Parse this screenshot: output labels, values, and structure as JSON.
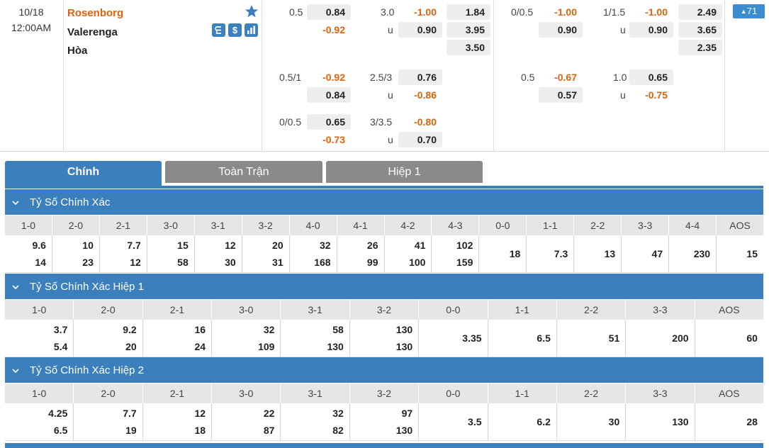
{
  "match": {
    "date": "10/18",
    "time": "12:00AM",
    "home": "Rosenborg",
    "away": "Valerenga",
    "draw": "Hòa",
    "more_count": "71"
  },
  "odds": {
    "ah_ft": [
      {
        "line": "0.5",
        "home": "0.84",
        "away": "-0.92"
      },
      {
        "line": "0.5/1",
        "home": "-0.92",
        "away": "0.84"
      },
      {
        "line": "0/0.5",
        "home": "0.65",
        "away": "-0.73"
      }
    ],
    "ou_ft": [
      {
        "line": "3.0",
        "over": "-1.00",
        "u": "u",
        "under": "0.90"
      },
      {
        "line": "2.5/3",
        "over": "0.76",
        "u": "u",
        "under": "-0.86"
      },
      {
        "line": "3/3.5",
        "over": "-0.80",
        "u": "u",
        "under": "0.70"
      }
    ],
    "x12_ft": [
      "1.84",
      "3.95",
      "3.50"
    ],
    "ah_h1": [
      {
        "line": "0/0.5",
        "home": "-1.00",
        "away": "0.90"
      },
      {
        "line": "0.5",
        "home": "-0.67",
        "away": "0.57"
      }
    ],
    "ou_h1": [
      {
        "line": "1/1.5",
        "over": "-1.00",
        "u": "u",
        "under": "0.90"
      },
      {
        "line": "1.0",
        "over": "0.65",
        "u": "u",
        "under": "-0.75"
      }
    ],
    "x12_h1": [
      "2.49",
      "3.65",
      "2.35"
    ]
  },
  "tabs": [
    "Chính",
    "Toàn Trận",
    "Hiệp 1"
  ],
  "sections": [
    {
      "title": "Tỷ Số Chính Xác",
      "headers": [
        "1-0",
        "2-0",
        "2-1",
        "3-0",
        "3-1",
        "3-2",
        "4-0",
        "4-1",
        "4-2",
        "4-3",
        "0-0",
        "1-1",
        "2-2",
        "3-3",
        "4-4",
        "AOS"
      ],
      "values": [
        [
          "9.6",
          "14"
        ],
        [
          "10",
          "23"
        ],
        [
          "7.7",
          "12"
        ],
        [
          "15",
          "58"
        ],
        [
          "12",
          "30"
        ],
        [
          "20",
          "31"
        ],
        [
          "32",
          "168"
        ],
        [
          "26",
          "99"
        ],
        [
          "41",
          "100"
        ],
        [
          "102",
          "159"
        ],
        [
          "18"
        ],
        [
          "7.3"
        ],
        [
          "13"
        ],
        [
          "47"
        ],
        [
          "230"
        ],
        [
          "15"
        ]
      ]
    },
    {
      "title": "Tỷ Số Chính Xác Hiệp 1",
      "headers": [
        "1-0",
        "2-0",
        "2-1",
        "3-0",
        "3-1",
        "3-2",
        "0-0",
        "1-1",
        "2-2",
        "3-3",
        "AOS"
      ],
      "values": [
        [
          "3.7",
          "5.4"
        ],
        [
          "9.2",
          "20"
        ],
        [
          "16",
          "24"
        ],
        [
          "32",
          "109"
        ],
        [
          "58",
          "130"
        ],
        [
          "130",
          "130"
        ],
        [
          "3.35"
        ],
        [
          "6.5"
        ],
        [
          "51"
        ],
        [
          "200"
        ],
        [
          "60"
        ]
      ]
    },
    {
      "title": "Tỷ Số Chính Xác Hiệp 2",
      "headers": [
        "1-0",
        "2-0",
        "2-1",
        "3-0",
        "3-1",
        "3-2",
        "0-0",
        "1-1",
        "2-2",
        "3-3",
        "AOS"
      ],
      "values": [
        [
          "4.25",
          "6.5"
        ],
        [
          "7.7",
          "19"
        ],
        [
          "12",
          "18"
        ],
        [
          "22",
          "87"
        ],
        [
          "32",
          "82"
        ],
        [
          "97",
          "130"
        ],
        [
          "3.5"
        ],
        [
          "6.2"
        ],
        [
          "30"
        ],
        [
          "130"
        ],
        [
          "28"
        ]
      ]
    }
  ],
  "colors": {
    "accent": "#3b80bd",
    "negative": "#e0620d",
    "tab_inactive": "#8a8a8a"
  },
  "icons": [
    "star-icon",
    "lineup-icon",
    "dollar-icon",
    "stats-icon",
    "chevron-down-icon",
    "triangle-up-icon"
  ]
}
